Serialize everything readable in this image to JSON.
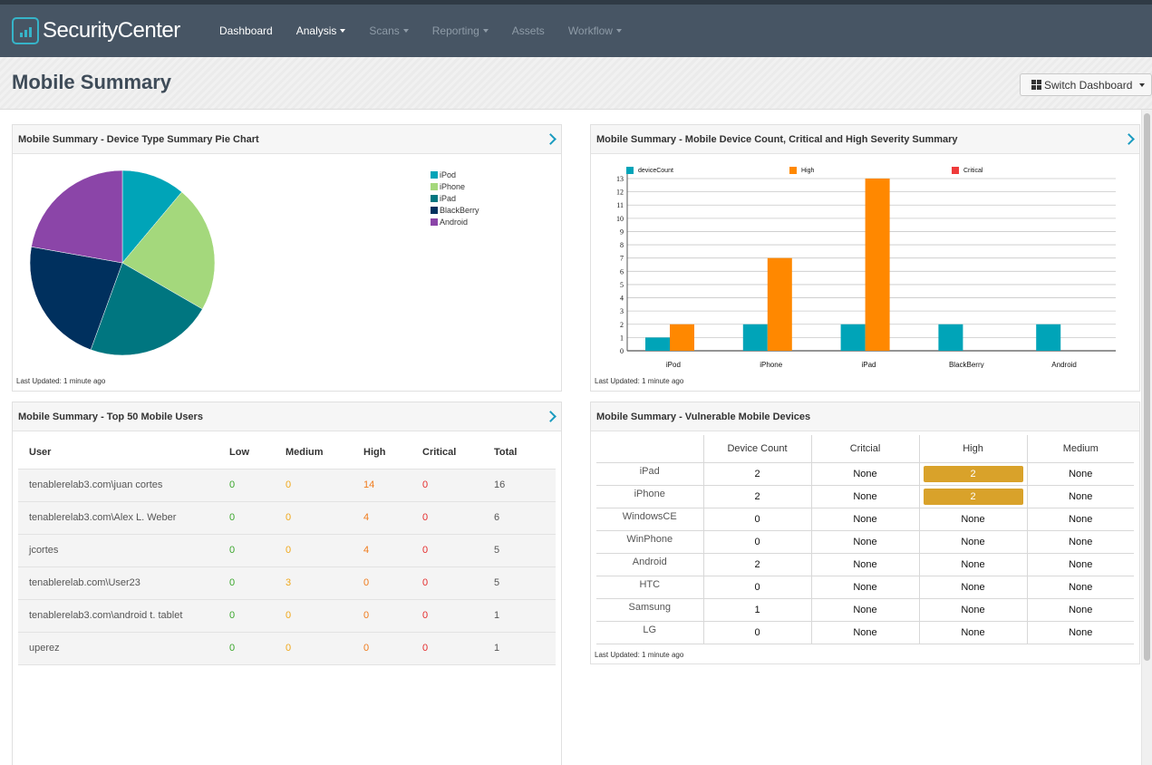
{
  "app": {
    "name": "SecurityCenter"
  },
  "nav": [
    {
      "label": "Dashboard",
      "dropdown": false,
      "enabled": true
    },
    {
      "label": "Analysis",
      "dropdown": true,
      "enabled": true
    },
    {
      "label": "Scans",
      "dropdown": true,
      "enabled": false
    },
    {
      "label": "Reporting",
      "dropdown": true,
      "enabled": false
    },
    {
      "label": "Assets",
      "dropdown": false,
      "enabled": false
    },
    {
      "label": "Workflow",
      "dropdown": true,
      "enabled": false
    }
  ],
  "page": {
    "title": "Mobile Summary",
    "switch_label": "Switch Dashboard"
  },
  "pie_panel": {
    "title": "Mobile Summary - Device Type Summary Pie Chart",
    "updated": "Last Updated: 1 minute ago",
    "legend": [
      {
        "label": "iPod",
        "color": "#00a4b8"
      },
      {
        "label": "iPhone",
        "color": "#a4d87c"
      },
      {
        "label": "iPad",
        "color": "#007680"
      },
      {
        "label": "BlackBerry",
        "color": "#00305e"
      },
      {
        "label": "Android",
        "color": "#8b45a8"
      }
    ]
  },
  "bar_panel": {
    "title": "Mobile Summary - Mobile Device Count, Critical and High Severity Summary",
    "updated": "Last Updated: 1 minute ago"
  },
  "users_panel": {
    "title": "Mobile Summary - Top 50 Mobile Users",
    "columns": [
      "User",
      "Low",
      "Medium",
      "High",
      "Critical",
      "Total"
    ],
    "rows": [
      {
        "user": "tenablerelab3.com\\juan cortes",
        "low": "0",
        "medium": "0",
        "high": "14",
        "critical": "0",
        "total": "16"
      },
      {
        "user": "tenablerelab3.com\\Alex L. Weber",
        "low": "0",
        "medium": "0",
        "high": "4",
        "critical": "0",
        "total": "6"
      },
      {
        "user": "jcortes",
        "low": "0",
        "medium": "0",
        "high": "4",
        "critical": "0",
        "total": "5"
      },
      {
        "user": "tenablerelab.com\\User23",
        "low": "0",
        "medium": "3",
        "high": "0",
        "critical": "0",
        "total": "5"
      },
      {
        "user": "tenablerelab3.com\\android t. tablet",
        "low": "0",
        "medium": "0",
        "high": "0",
        "critical": "0",
        "total": "1"
      },
      {
        "user": "uperez",
        "low": "0",
        "medium": "0",
        "high": "0",
        "critical": "0",
        "total": "1"
      }
    ]
  },
  "vuln_panel": {
    "title": "Mobile Summary - Vulnerable Mobile Devices",
    "updated": "Last Updated: 1 minute ago",
    "columns": [
      "",
      "Device Count",
      "Critcial",
      "High",
      "Medium"
    ],
    "highlight_color": "#d9a22a",
    "rows": [
      {
        "device": "iPad",
        "count": "2",
        "critical": "None",
        "high": "2",
        "medium": "None",
        "high_flag": true
      },
      {
        "device": "iPhone",
        "count": "2",
        "critical": "None",
        "high": "2",
        "medium": "None",
        "high_flag": true
      },
      {
        "device": "WindowsCE",
        "count": "0",
        "critical": "None",
        "high": "None",
        "medium": "None",
        "high_flag": false
      },
      {
        "device": "WinPhone",
        "count": "0",
        "critical": "None",
        "high": "None",
        "medium": "None",
        "high_flag": false
      },
      {
        "device": "Android",
        "count": "2",
        "critical": "None",
        "high": "None",
        "medium": "None",
        "high_flag": false
      },
      {
        "device": "HTC",
        "count": "0",
        "critical": "None",
        "high": "None",
        "medium": "None",
        "high_flag": false
      },
      {
        "device": "Samsung",
        "count": "1",
        "critical": "None",
        "high": "None",
        "medium": "None",
        "high_flag": false
      },
      {
        "device": "LG",
        "count": "0",
        "critical": "None",
        "high": "None",
        "medium": "None",
        "high_flag": false
      }
    ]
  },
  "chart_data": [
    {
      "type": "pie",
      "categories": [
        "iPod",
        "iPhone",
        "iPad",
        "BlackBerry",
        "Android"
      ],
      "values": [
        1,
        2,
        2,
        2,
        2
      ],
      "colors": [
        "#00a4b8",
        "#a4d87c",
        "#007680",
        "#00305e",
        "#8b45a8"
      ],
      "legend": "right",
      "title": ""
    },
    {
      "type": "bar",
      "categories": [
        "iPod",
        "iPhone",
        "iPad",
        "BlackBerry",
        "Android"
      ],
      "series": [
        {
          "name": "deviceCount",
          "values": [
            1,
            2,
            2,
            2,
            2
          ],
          "color": "#00a4b8"
        },
        {
          "name": "High",
          "values": [
            2,
            7,
            13,
            0,
            0
          ],
          "color": "#ff8800"
        },
        {
          "name": "Critical",
          "values": [
            0,
            0,
            0,
            0,
            0
          ],
          "color": "#ef3b3b"
        }
      ],
      "ylim": [
        0,
        13
      ],
      "yticks": [
        0,
        1,
        2,
        3,
        4,
        5,
        6,
        7,
        8,
        9,
        10,
        11,
        12,
        13
      ],
      "grid": true,
      "legend": "top",
      "title": ""
    }
  ]
}
